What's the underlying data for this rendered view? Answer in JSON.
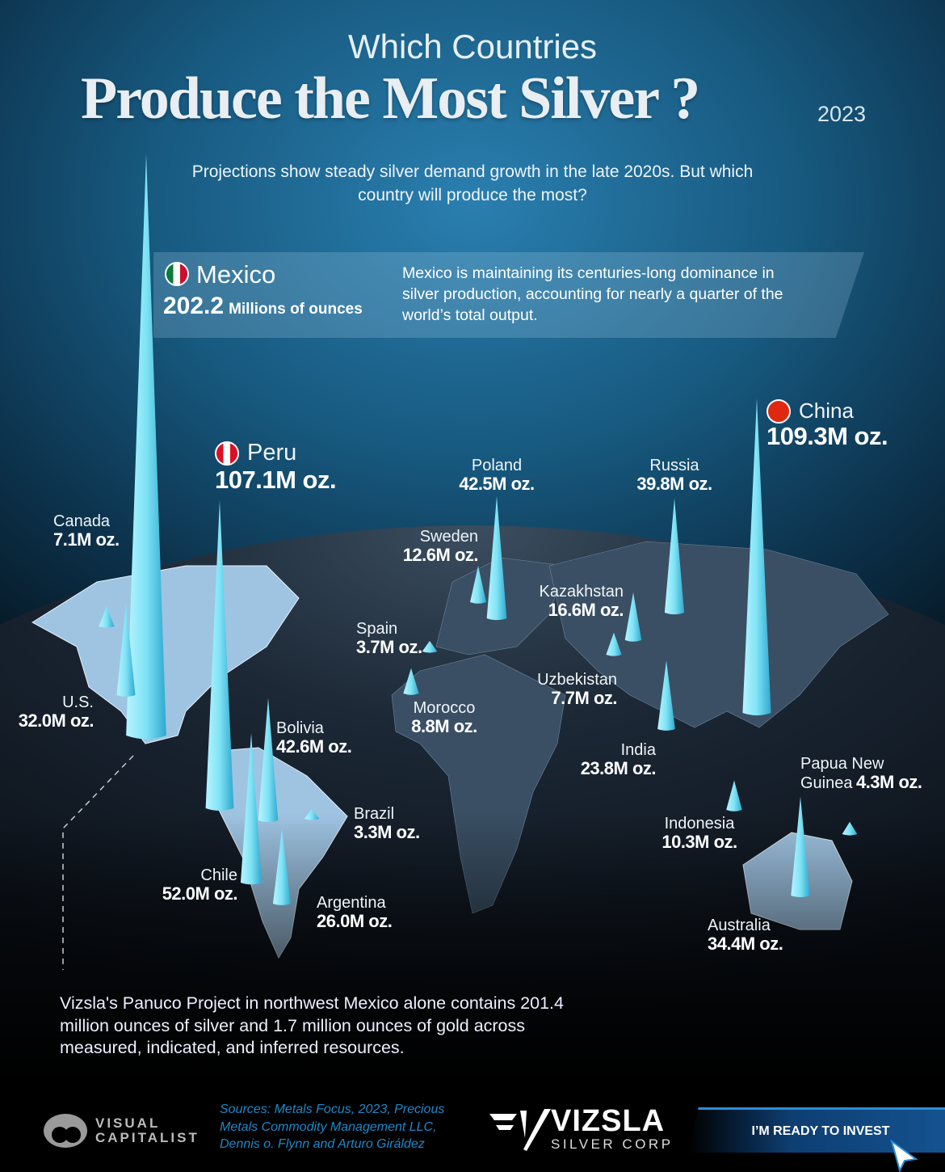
{
  "header": {
    "kicker": "Which Countries",
    "title": "Produce the Most Silver ?",
    "year": "2023",
    "subtitle": "Projections show steady silver demand growth in the late 2020s. But which country will produce the most?"
  },
  "highlight": {
    "country": "Mexico",
    "value": "202.2",
    "unit": "Millions of ounces",
    "description": "Mexico is maintaining its centuries-long dominance in silver production, accounting for nearly a quarter of the world’s total output."
  },
  "chart_data": {
    "type": "map-spike",
    "unit": "Millions of ounces",
    "countries": [
      {
        "name": "Mexico",
        "value": 202.2,
        "label": "202.2"
      },
      {
        "name": "China",
        "value": 109.3,
        "label": "109.3M oz."
      },
      {
        "name": "Peru",
        "value": 107.1,
        "label": "107.1M oz."
      },
      {
        "name": "Chile",
        "value": 52.0,
        "label": "52.0M oz."
      },
      {
        "name": "Bolivia",
        "value": 42.6,
        "label": "42.6M oz."
      },
      {
        "name": "Poland",
        "value": 42.5,
        "label": "42.5M oz."
      },
      {
        "name": "Russia",
        "value": 39.8,
        "label": "39.8M oz."
      },
      {
        "name": "Australia",
        "value": 34.4,
        "label": "34.4M oz."
      },
      {
        "name": "U.S.",
        "value": 32.0,
        "label": "32.0M oz."
      },
      {
        "name": "Argentina",
        "value": 26.0,
        "label": "26.0M oz."
      },
      {
        "name": "India",
        "value": 23.8,
        "label": "23.8M oz."
      },
      {
        "name": "Kazakhstan",
        "value": 16.6,
        "label": "16.6M oz."
      },
      {
        "name": "Sweden",
        "value": 12.6,
        "label": "12.6M oz."
      },
      {
        "name": "Indonesia",
        "value": 10.3,
        "label": "10.3M oz."
      },
      {
        "name": "Morocco",
        "value": 8.8,
        "label": "8.8M oz."
      },
      {
        "name": "Uzbekistan",
        "value": 7.7,
        "label": "7.7M oz."
      },
      {
        "name": "Canada",
        "value": 7.1,
        "label": "7.1M oz."
      },
      {
        "name": "Papua New Guinea",
        "value": 4.3,
        "label": "4.3M oz."
      },
      {
        "name": "Spain",
        "value": 3.7,
        "label": "3.7M oz."
      },
      {
        "name": "Brazil",
        "value": 3.3,
        "label": "3.3M oz."
      }
    ]
  },
  "labels": {
    "png_line1": "Papua New",
    "png_line2": "Guinea"
  },
  "colors": {
    "spike": "#7fe3f5",
    "land": "#9fc4e2",
    "source_text": "#1f88c9"
  },
  "note": "Vizsla's Panuco Project in northwest Mexico alone contains 201.4 million ounces of silver and 1.7 million ounces of gold across measured, indicated, and inferred resources.",
  "footer": {
    "vc_line1": "VISUAL",
    "vc_line2": "CAPITALIST",
    "sources": "Sources: Metals Focus, 2023, Precious Metals Commodity Management LLC, Dennis o. Flynn and Arturo Giráldez",
    "brand": "VIZSLA",
    "brand_sub": "SILVER CORP",
    "cta": "I’M READY TO INVEST"
  }
}
